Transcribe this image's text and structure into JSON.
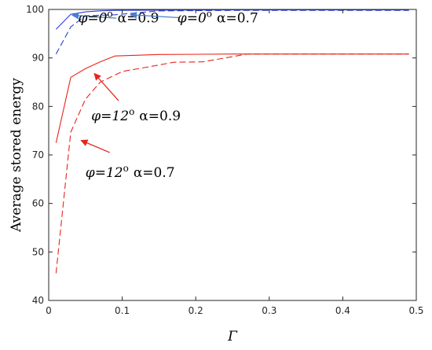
{
  "chart_data": {
    "type": "line",
    "xlabel": "Γ",
    "ylabel": "Average stored energy",
    "xlim": [
      0,
      0.5
    ],
    "ylim": [
      40,
      100
    ],
    "xticks": [
      0,
      0.1,
      0.2,
      0.3,
      0.4,
      0.5
    ],
    "yticks": [
      40,
      50,
      60,
      70,
      80,
      90,
      100
    ],
    "xtick_labels": [
      "0",
      "0.1",
      "0.2",
      "0.3",
      "0.4",
      "0.5"
    ],
    "ytick_labels": [
      "40",
      "50",
      "60",
      "70",
      "80",
      "90",
      "100"
    ],
    "grid": false,
    "series": [
      {
        "color": "#2b3fd6",
        "dash": "solid",
        "x": [
          0.01,
          0.03,
          0.05,
          0.07,
          0.09,
          0.15,
          0.25,
          0.49
        ],
        "y": [
          95.9,
          99.0,
          99.5,
          99.7,
          99.8,
          99.85,
          99.9,
          99.9
        ]
      },
      {
        "color": "#2b3fd6",
        "dash": "dashed",
        "x": [
          0.01,
          0.03,
          0.05,
          0.07,
          0.09,
          0.15,
          0.25,
          0.49
        ],
        "y": [
          90.8,
          96.4,
          98.7,
          98.8,
          98.9,
          99.7,
          99.8,
          99.8
        ]
      },
      {
        "color": "#e8241b",
        "dash": "solid",
        "x": [
          0.01,
          0.03,
          0.05,
          0.07,
          0.09,
          0.15,
          0.25,
          0.49
        ],
        "y": [
          72.5,
          86.0,
          87.8,
          89.2,
          90.4,
          90.7,
          90.8,
          90.8
        ]
      },
      {
        "color": "#e8241b",
        "dash": "dashed",
        "x": [
          0.01,
          0.03,
          0.05,
          0.07,
          0.1,
          0.13,
          0.17,
          0.21,
          0.27,
          0.49
        ],
        "y": [
          45.6,
          74.7,
          81.5,
          85.0,
          87.2,
          88.0,
          89.1,
          89.2,
          90.8,
          90.8
        ]
      }
    ],
    "annotations": [
      {
        "phi": "φ=0",
        "sup": "o",
        "alpha": "α=0.9",
        "color": "#4a7fd0",
        "label_pos": [
          0.04,
          97.3
        ],
        "arrow_from": [
          0.092,
          98.2
        ],
        "arrow_to": [
          0.032,
          98.8
        ]
      },
      {
        "phi": "φ=0",
        "sup": "o",
        "alpha": "α=0.7",
        "color": "#4a7fd0",
        "label_pos": [
          0.175,
          97.3
        ],
        "arrow_from": [
          0.178,
          98.3
        ],
        "arrow_to": [
          0.111,
          98.9
        ]
      },
      {
        "phi": "φ=12",
        "sup": "o",
        "alpha": "α=0.9",
        "color": "#e8241b",
        "label_pos": [
          0.058,
          77.1
        ],
        "arrow_from": [
          0.095,
          81.2
        ],
        "arrow_to": [
          0.062,
          86.8
        ]
      },
      {
        "phi": "φ=12",
        "sup": "o",
        "alpha": "α=0.7",
        "color": "#e8241b",
        "label_pos": [
          0.05,
          65.5
        ],
        "arrow_from": [
          0.083,
          70.5
        ],
        "arrow_to": [
          0.044,
          73.0
        ]
      }
    ]
  }
}
